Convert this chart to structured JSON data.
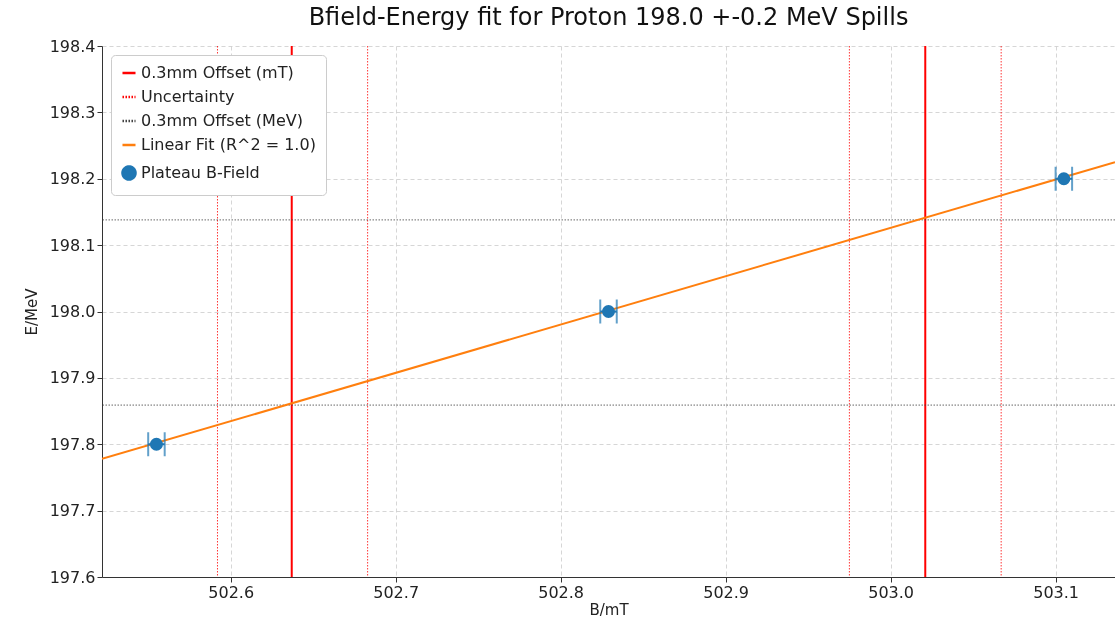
{
  "chart_data": {
    "type": "scatter",
    "title": "Bfield-Energy fit for Proton 198.0 +-0.2 MeV Spills",
    "xlabel": "B/mT",
    "ylabel": "E/MeV",
    "series": [
      {
        "name": "Linear Fit (R^2 = 1.0)",
        "type": "line",
        "color": "#ff7f0e",
        "line_style": "solid",
        "x": [
          502.522,
          503.136
        ],
        "values": [
          197.778,
          198.225
        ]
      },
      {
        "name": "Plateau B-Field",
        "color": "#1f77b4",
        "marker": "circle",
        "x": [
          502.555,
          502.829,
          503.105
        ],
        "values": [
          197.8,
          198.0,
          198.2
        ],
        "xerrors": [
          0.005,
          0.005,
          0.005
        ]
      }
    ],
    "ref_lines": [
      {
        "axis": "x",
        "value": 502.637,
        "label": "0.3mm Offset (mT)",
        "color": "#ff0000",
        "line_style": "solid"
      },
      {
        "axis": "x",
        "value": 503.021,
        "color": "#ff0000",
        "line_style": "solid"
      },
      {
        "axis": "x",
        "value": 502.592,
        "label": "Uncertainty",
        "color": "#ff0000",
        "line_style": "dotted"
      },
      {
        "axis": "x",
        "value": 502.683,
        "color": "#ff0000",
        "line_style": "dotted"
      },
      {
        "axis": "x",
        "value": 502.975,
        "color": "#ff0000",
        "line_style": "dotted"
      },
      {
        "axis": "x",
        "value": 503.067,
        "color": "#ff0000",
        "line_style": "dotted"
      },
      {
        "axis": "y",
        "value": 198.138,
        "label": "0.3mm Offset (MeV)",
        "color": "#404040",
        "line_style": "dotted"
      },
      {
        "axis": "y",
        "value": 197.859,
        "color": "#404040",
        "line_style": "dotted"
      }
    ],
    "xlim": [
      502.522,
      503.136
    ],
    "ylim": [
      197.6,
      198.4
    ],
    "xticks": [
      502.6,
      502.7,
      502.8,
      502.9,
      {
        "value": 503.0,
        "label": "503.0"
      },
      503.1
    ],
    "yticks": [
      197.6,
      197.7,
      197.8,
      197.9,
      {
        "value": 198.0,
        "label": "198.0"
      },
      198.1,
      198.2,
      198.3,
      198.4
    ],
    "grid": true,
    "legend": "top left"
  }
}
